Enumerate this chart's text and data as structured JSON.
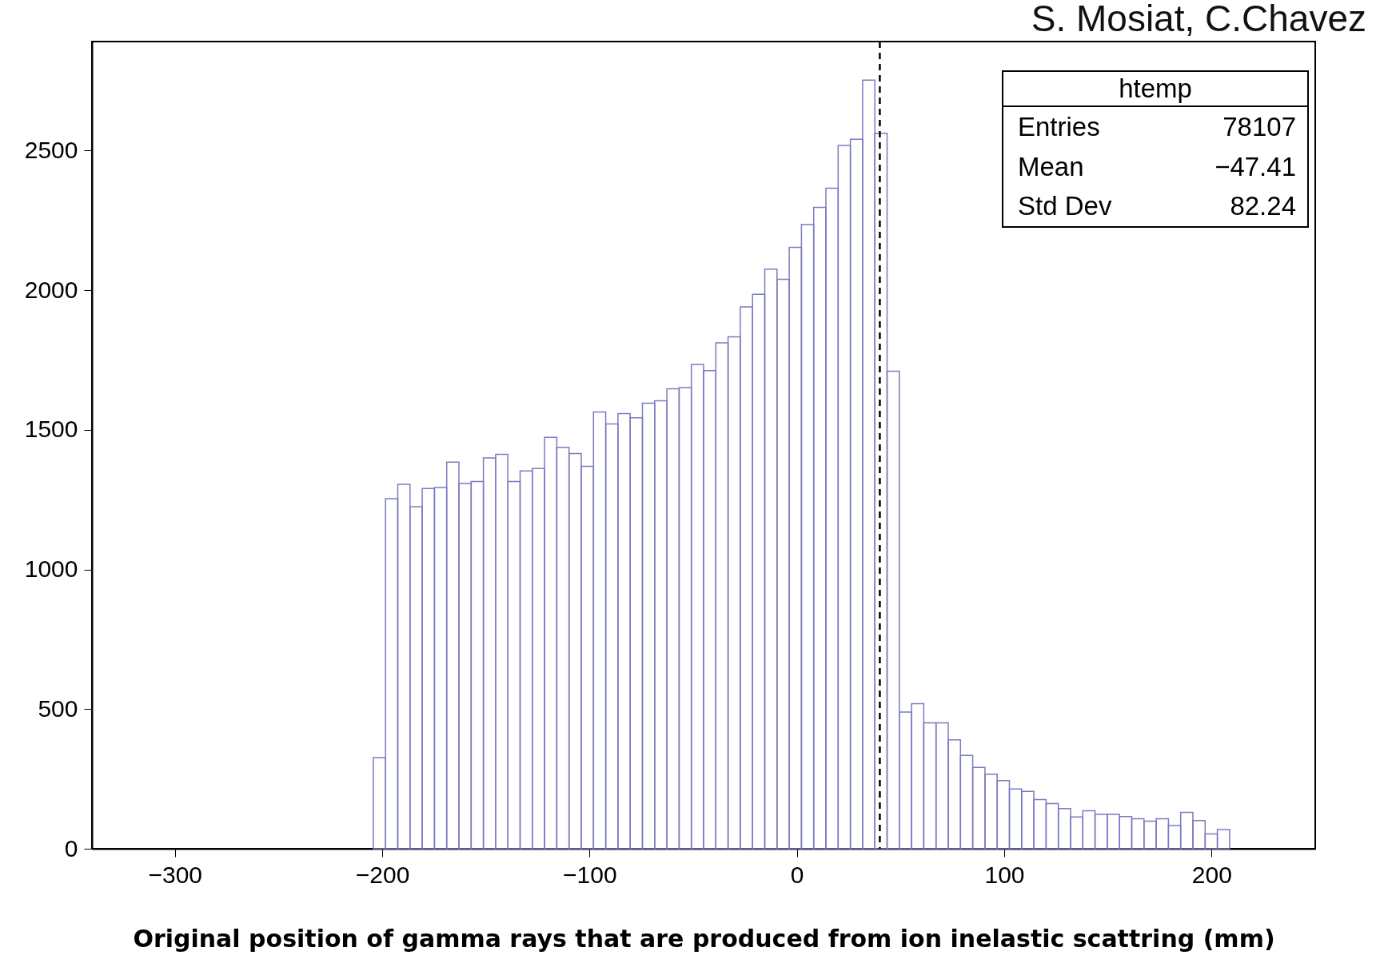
{
  "chart_data": {
    "type": "histogram",
    "xlabel": "Original position of gamma rays that are produced from ion inelastic scattring (mm)",
    "bins": [
      -204.3,
      -198.4,
      -192.5,
      -186.6,
      -180.7,
      -174.8,
      -168.9,
      -163,
      -157.1,
      -151.2,
      -145.3,
      -139.4,
      -133.5,
      -127.6,
      -121.7,
      -115.8,
      -109.9,
      -104,
      -98.1,
      -92.2,
      -86.3,
      -80.4,
      -74.5,
      -68.6,
      -62.7,
      -56.8,
      -50.9,
      -45,
      -39.1,
      -33.2,
      -27.3,
      -21.4,
      -15.5,
      -9.6,
      -3.7,
      2.2,
      8.1,
      14,
      19.9,
      25.8,
      31.7,
      37.6,
      43.5,
      49.4,
      55.3,
      61.2,
      67.1,
      73,
      78.9,
      84.8,
      90.7,
      96.6,
      102.5,
      108.4,
      114.3,
      120.2,
      126.1,
      132,
      137.9,
      143.8,
      149.7,
      155.6,
      161.5,
      167.4,
      173.3,
      179.2,
      185.1,
      191,
      196.9,
      202.8,
      208.7
    ],
    "values": [
      326,
      1253,
      1305,
      1225,
      1290,
      1293,
      1384,
      1308,
      1315,
      1399,
      1412,
      1315,
      1353,
      1361,
      1473,
      1437,
      1415,
      1369,
      1564,
      1521,
      1558,
      1543,
      1595,
      1604,
      1647,
      1651,
      1734,
      1712,
      1811,
      1833,
      1940,
      1985,
      2075,
      2039,
      2153,
      2235,
      2296,
      2365,
      2518,
      2540,
      2752,
      2562,
      1710,
      489,
      519,
      451,
      451,
      390,
      334,
      291,
      267,
      244,
      214,
      205,
      176,
      162,
      144,
      114,
      136,
      123,
      123,
      115,
      107,
      99,
      107,
      83,
      130,
      101,
      53,
      69
    ],
    "color": "#7b7bc0",
    "xlim": [
      -340,
      250
    ],
    "xticks": [
      -300,
      -200,
      -100,
      0,
      100,
      200
    ],
    "ylim": [
      0,
      2890
    ],
    "yticks": [
      0,
      500,
      1000,
      1500,
      2000,
      2500
    ],
    "ref_lines": [
      {
        "axis": "x",
        "value": 40,
        "color": "#000000",
        "line_style": "dashed"
      }
    ],
    "annotations": [
      "S. Mosiat, C.Chavez",
      "htemp",
      "Entries",
      "78107",
      "Mean",
      "−47.41",
      "Std Dev",
      "82.24"
    ],
    "grid": false
  }
}
